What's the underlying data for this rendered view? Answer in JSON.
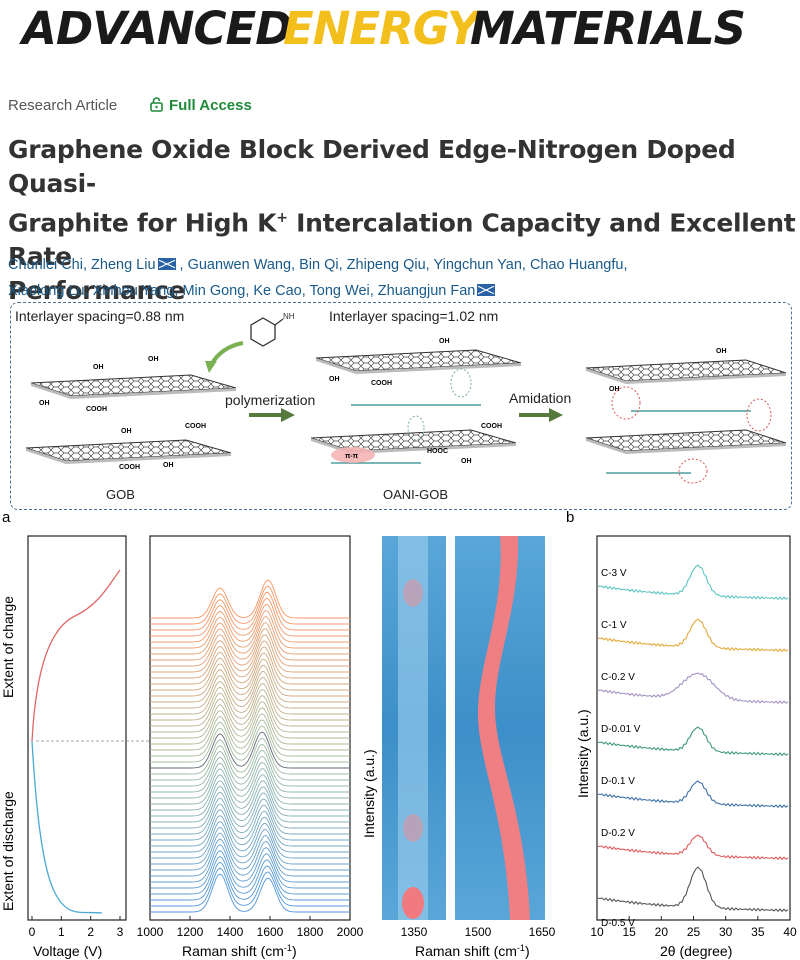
{
  "journal": {
    "part1": "ADVANCED",
    "part2": "ENERGY",
    "part3": "MATERIALS",
    "colors": {
      "dark": "#1a1a1a",
      "accent": "#f2bf1d"
    }
  },
  "article": {
    "type": "Research Article",
    "access": "Full Access",
    "title_line1": "Graphene Oxide Block Derived Edge-Nitrogen Doped Quasi-",
    "title_line2a": "Graphite for High K",
    "title_sup": "+",
    "title_line2b": " Intercalation Capacity and Excellent Rate",
    "title_line3": "Performance",
    "authors_line1": [
      "Chunlei Chi",
      "Zheng Liu",
      "Guanwen Wang",
      "Bin Qi",
      "Zhipeng Qiu",
      "Yingchun Yan",
      "Chao Huangfu"
    ],
    "authors_line2": [
      "Xiaolong Lu",
      "Xinhou Yang",
      "Min Gong",
      "Ke Cao",
      "Tong Wei",
      "Zhuangjun Fan"
    ],
    "corresponding": [
      "Zheng Liu",
      "Zhuangjun Fan"
    ]
  },
  "scheme": {
    "spacing1": "Interlayer spacing=0.88 nm",
    "spacing2": "Interlayer spacing=1.02 nm",
    "step1": "polymerization",
    "step2": "Amidation",
    "label1": "GOB",
    "label2": "OANI-GOB",
    "groups": {
      "oh": "OH",
      "o": "O",
      "cooh": "COOH",
      "nh2": "NH",
      "pipi": "π-π",
      "hooc": "HOOC",
      "h": "H",
      "n": "N",
      "c": "C",
      "oo": "O"
    }
  },
  "figure": {
    "panel_a": "a",
    "panel_b": "b",
    "charge_label": "Extent of charge",
    "discharge_label": "Extent of discharge",
    "voltage_xlabel": "Voltage (V)",
    "voltage_ticks": [
      "0",
      "1",
      "2",
      "3"
    ],
    "raman_xlabel": "Raman shift (cm",
    "raman_sup": "-1",
    "raman_xlabel_end": ")",
    "raman_ticks": [
      "1000",
      "1200",
      "1400",
      "1600",
      "1800",
      "2000"
    ],
    "map_ylabel": "Intensity (a.u.)",
    "map_ticks": [
      "1350",
      "1500",
      "1650"
    ],
    "xrd_ylabel": "Intensity (a.u.)",
    "xrd_xlabel": "2θ (degree)",
    "xrd_ticks": [
      "10",
      "15",
      "20",
      "25",
      "30",
      "35",
      "40"
    ],
    "xrd_series": [
      {
        "name": "C-3 V",
        "color": "#5fc4c2"
      },
      {
        "name": "C-1 V",
        "color": "#e3a93a"
      },
      {
        "name": "C-0.2 V",
        "color": "#a693c4"
      },
      {
        "name": "D-0.01 V",
        "color": "#3e9a78"
      },
      {
        "name": "D-0.1 V",
        "color": "#3d6fa8"
      },
      {
        "name": "D-0.2 V",
        "color": "#e05a5a"
      },
      {
        "name": "D-0.5 V",
        "color": "#555555"
      }
    ]
  }
}
